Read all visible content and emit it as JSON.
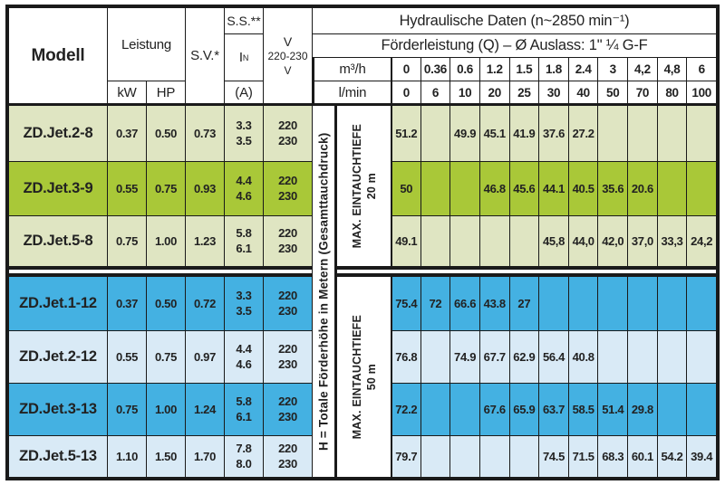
{
  "header": {
    "modell": "Modell",
    "leistung": "Leistung",
    "kw": "kW",
    "hp": "HP",
    "sv": "S.V.*",
    "ss": "S.S.**",
    "in_base": "I",
    "in_sub": "N",
    "amp": "(A)",
    "v_line1": "V",
    "v_line2": "220-230 V",
    "hydraulische": "Hydraulische Daten (n~2850 min⁻¹)",
    "foerderleistung": "Förderleistung (Q) – Ø Auslass: 1\" ¼ G-F",
    "m3h": "m³/h",
    "lmin": "l/min",
    "m3h_values": [
      "0",
      "0.36",
      "0.6",
      "1.2",
      "1.5",
      "1.8",
      "2.4",
      "3",
      "4,2",
      "4,8",
      "6"
    ],
    "lmin_values": [
      "0",
      "6",
      "10",
      "20",
      "25",
      "30",
      "40",
      "50",
      "70",
      "80",
      "100"
    ]
  },
  "side": {
    "h_label": "H = Totale Förderhöhe in Metern (Gesamttauchdruck)",
    "max20_line1": "MAX. EINTAUCHTIEFE",
    "max20_line2": "20 m",
    "max50_line1": "MAX. EINTAUCHTIEFE",
    "max50_line2": "50 m"
  },
  "rows": [
    {
      "model": "ZD.Jet.2-8",
      "kw": "0.37",
      "hp": "0.50",
      "sv": "0.73",
      "in": [
        "3.3",
        "3.5"
      ],
      "v": [
        "220",
        "230"
      ],
      "shade": "green-light",
      "values": [
        "51.2",
        "",
        "49.9",
        "45.1",
        "41.9",
        "37.6",
        "27.2",
        "",
        "",
        "",
        ""
      ]
    },
    {
      "model": "ZD.Jet.3-9",
      "kw": "0.55",
      "hp": "0.75",
      "sv": "0.93",
      "in": [
        "4.4",
        "4.6"
      ],
      "v": [
        "220",
        "230"
      ],
      "shade": "green-dark",
      "values": [
        "50",
        "",
        "",
        "46.8",
        "45.6",
        "44.1",
        "40.5",
        "35.6",
        "20.6",
        "",
        ""
      ]
    },
    {
      "model": "ZD.Jet.5-8",
      "kw": "0.75",
      "hp": "1.00",
      "sv": "1.23",
      "in": [
        "5.8",
        "6.1"
      ],
      "v": [
        "220",
        "230"
      ],
      "shade": "green-light",
      "values": [
        "49.1",
        "",
        "",
        "",
        "",
        "45,8",
        "44,0",
        "42,0",
        "37,0",
        "33,3",
        "24,2"
      ]
    },
    {
      "model": "ZD.Jet.1-12",
      "kw": "0.37",
      "hp": "0.50",
      "sv": "0.72",
      "in": [
        "3.3",
        "3.5"
      ],
      "v": [
        "220",
        "230"
      ],
      "shade": "blue-dark",
      "values": [
        "75.4",
        "72",
        "66.6",
        "43.8",
        "27",
        "",
        "",
        "",
        "",
        "",
        ""
      ]
    },
    {
      "model": "ZD.Jet.2-12",
      "kw": "0.55",
      "hp": "0.75",
      "sv": "0.97",
      "in": [
        "4.4",
        "4.6"
      ],
      "v": [
        "220",
        "230"
      ],
      "shade": "blue-light",
      "values": [
        "76.8",
        "",
        "74.9",
        "67.7",
        "62.9",
        "56.4",
        "40.8",
        "",
        "",
        "",
        ""
      ]
    },
    {
      "model": "ZD.Jet.3-13",
      "kw": "0.75",
      "hp": "1.00",
      "sv": "1.24",
      "in": [
        "5.8",
        "6.1"
      ],
      "v": [
        "220",
        "230"
      ],
      "shade": "blue-dark",
      "values": [
        "72.2",
        "",
        "",
        "67.6",
        "65.9",
        "63.7",
        "58.5",
        "51.4",
        "29.8",
        "",
        ""
      ]
    },
    {
      "model": "ZD.Jet.5-13",
      "kw": "1.10",
      "hp": "1.50",
      "sv": "1.70",
      "in": [
        "7.8",
        "8.0"
      ],
      "v": [
        "220",
        "230"
      ],
      "shade": "blue-light",
      "values": [
        "79.7",
        "",
        "",
        "",
        "",
        "74.5",
        "71.5",
        "68.3",
        "60.1",
        "54.2",
        "39.4"
      ]
    }
  ],
  "colors": {
    "line": "#1a1a1a",
    "green-light": "#dfe5c2",
    "green-dark": "#a9c838",
    "blue-dark": "#44b1e2",
    "blue-light": "#d9eaf6"
  }
}
